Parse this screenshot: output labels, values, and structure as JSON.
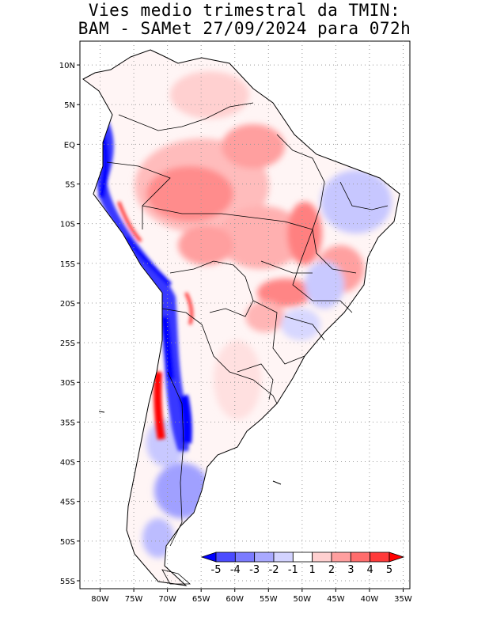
{
  "title": {
    "line1": "Vies medio trimestral da TMIN:",
    "line2": "BAM - SAMet 27/09/2024  para 072h"
  },
  "axes": {
    "lon_labels": [
      "80W",
      "75W",
      "70W",
      "65W",
      "60W",
      "55W",
      "50W",
      "45W",
      "40W",
      "35W"
    ],
    "lon_values": [
      -80,
      -75,
      -70,
      -65,
      -60,
      -55,
      -50,
      -45,
      -40,
      -35
    ],
    "lat_labels": [
      "10N",
      "5N",
      "EQ",
      "5S",
      "10S",
      "15S",
      "20S",
      "25S",
      "30S",
      "35S",
      "40S",
      "45S",
      "50S",
      "55S"
    ],
    "lat_values": [
      10,
      5,
      0,
      -5,
      -10,
      -15,
      -20,
      -25,
      -30,
      -35,
      -40,
      -45,
      -50,
      -55
    ],
    "lon_range": [
      -83,
      -34
    ],
    "lat_range": [
      -56,
      13
    ],
    "grid": "dotted"
  },
  "colorbar": {
    "labels": [
      "-5",
      "-4",
      "-3",
      "-2",
      "-1",
      "1",
      "2",
      "3",
      "4",
      "5"
    ],
    "colors": [
      "#0000ff",
      "#4b4bff",
      "#7b7bff",
      "#a9a9ff",
      "#d3d3ff",
      "#ffffff",
      "#ffd0d0",
      "#ff9f9f",
      "#ff6d6d",
      "#ff3a3a",
      "#ff0000"
    ],
    "placement": "bottom-right"
  }
}
